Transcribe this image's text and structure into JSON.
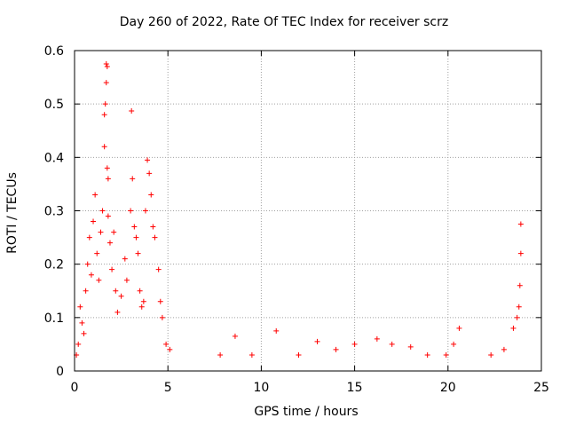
{
  "chart_data": {
    "type": "scatter",
    "title": "Day 260 of 2022, Rate Of TEC Index for receiver scrz",
    "xlabel": "GPS time / hours",
    "ylabel": "ROTI / TECUs",
    "xlim": [
      0,
      25
    ],
    "ylim": [
      0,
      0.6
    ],
    "xticks": [
      "0",
      "5",
      "10",
      "15",
      "20",
      "25"
    ],
    "yticks": [
      "0",
      "0.1",
      "0.2",
      "0.3",
      "0.4",
      "0.5",
      "0.6"
    ],
    "grid": true,
    "marker": "+",
    "color": "#ff0000",
    "series": [
      {
        "points": [
          [
            0.1,
            0.03
          ],
          [
            0.2,
            0.05
          ],
          [
            0.3,
            0.12
          ],
          [
            0.4,
            0.09
          ],
          [
            0.5,
            0.07
          ],
          [
            0.6,
            0.15
          ],
          [
            0.7,
            0.2
          ],
          [
            0.8,
            0.25
          ],
          [
            0.9,
            0.18
          ],
          [
            1.0,
            0.28
          ],
          [
            1.1,
            0.33
          ],
          [
            1.2,
            0.22
          ],
          [
            1.3,
            0.17
          ],
          [
            1.4,
            0.26
          ],
          [
            1.5,
            0.3
          ],
          [
            1.6,
            0.42
          ],
          [
            1.6,
            0.48
          ],
          [
            1.65,
            0.5
          ],
          [
            1.7,
            0.54
          ],
          [
            1.7,
            0.575
          ],
          [
            1.75,
            0.57
          ],
          [
            1.75,
            0.38
          ],
          [
            1.8,
            0.36
          ],
          [
            1.8,
            0.29
          ],
          [
            1.9,
            0.24
          ],
          [
            2.0,
            0.19
          ],
          [
            2.1,
            0.26
          ],
          [
            2.2,
            0.15
          ],
          [
            2.3,
            0.11
          ],
          [
            2.5,
            0.14
          ],
          [
            2.7,
            0.21
          ],
          [
            2.8,
            0.17
          ],
          [
            3.0,
            0.3
          ],
          [
            3.05,
            0.487
          ],
          [
            3.1,
            0.36
          ],
          [
            3.2,
            0.27
          ],
          [
            3.3,
            0.25
          ],
          [
            3.4,
            0.22
          ],
          [
            3.5,
            0.15
          ],
          [
            3.6,
            0.12
          ],
          [
            3.7,
            0.13
          ],
          [
            3.8,
            0.3
          ],
          [
            3.9,
            0.395
          ],
          [
            4.0,
            0.37
          ],
          [
            4.1,
            0.33
          ],
          [
            4.2,
            0.27
          ],
          [
            4.3,
            0.25
          ],
          [
            4.5,
            0.19
          ],
          [
            4.6,
            0.13
          ],
          [
            4.7,
            0.1
          ],
          [
            4.9,
            0.05
          ],
          [
            5.1,
            0.04
          ],
          [
            7.8,
            0.03
          ],
          [
            8.6,
            0.065
          ],
          [
            9.5,
            0.03
          ],
          [
            10.8,
            0.075
          ],
          [
            12.0,
            0.03
          ],
          [
            13.0,
            0.055
          ],
          [
            14.0,
            0.04
          ],
          [
            15.0,
            0.05
          ],
          [
            16.2,
            0.06
          ],
          [
            17.0,
            0.05
          ],
          [
            18.0,
            0.045
          ],
          [
            18.9,
            0.03
          ],
          [
            19.9,
            0.03
          ],
          [
            20.3,
            0.05
          ],
          [
            20.6,
            0.08
          ],
          [
            22.3,
            0.03
          ],
          [
            23.0,
            0.04
          ],
          [
            23.5,
            0.08
          ],
          [
            23.7,
            0.1
          ],
          [
            23.8,
            0.12
          ],
          [
            23.85,
            0.16
          ],
          [
            23.9,
            0.22
          ],
          [
            23.9,
            0.275
          ]
        ]
      }
    ]
  }
}
